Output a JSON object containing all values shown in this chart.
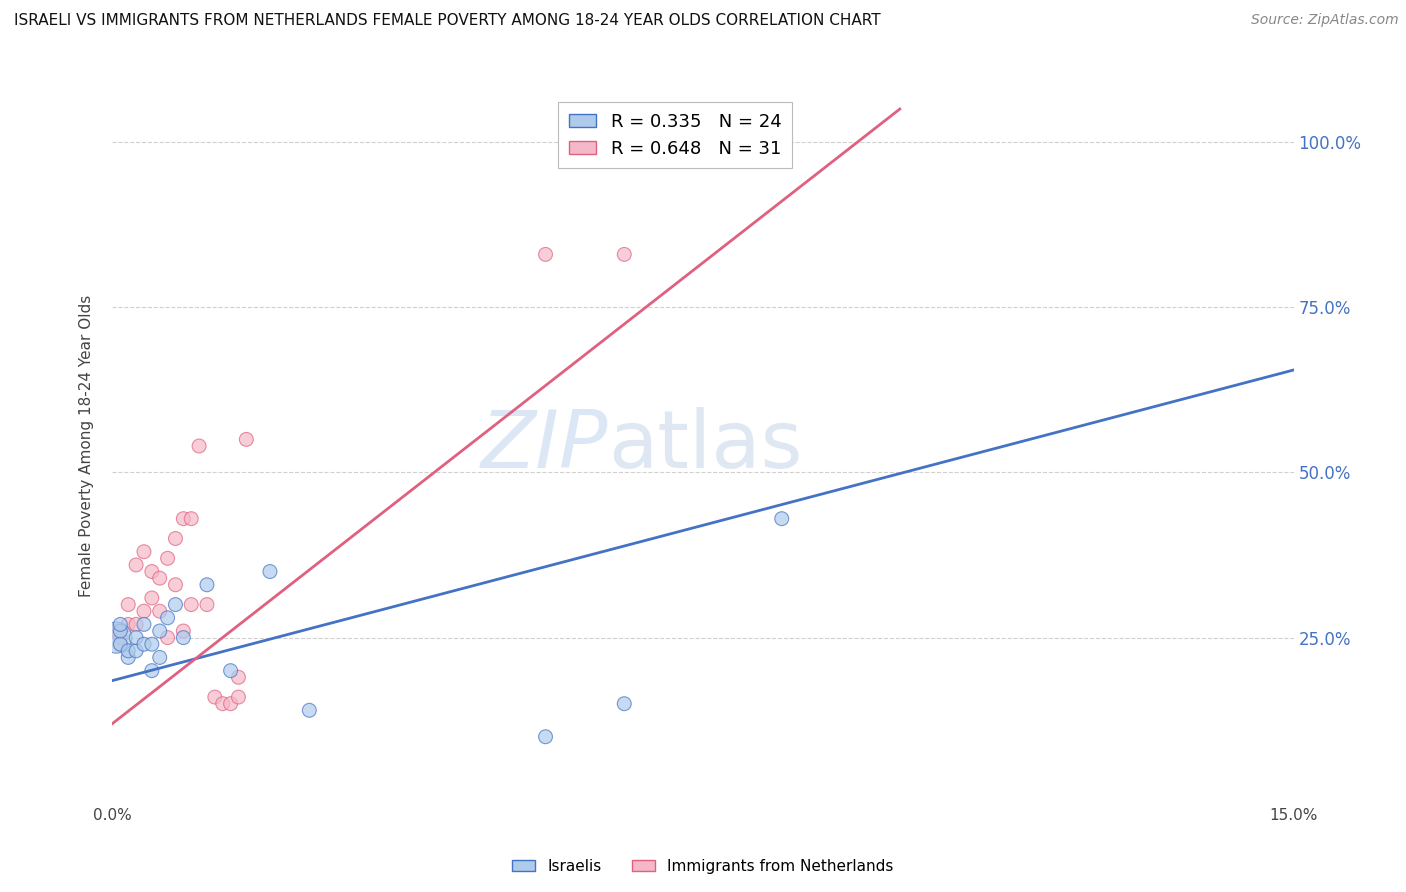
{
  "title": "ISRAELI VS IMMIGRANTS FROM NETHERLANDS FEMALE POVERTY AMONG 18-24 YEAR OLDS CORRELATION CHART",
  "source": "Source: ZipAtlas.com",
  "ylabel": "Female Poverty Among 18-24 Year Olds",
  "xlim": [
    0.0,
    0.15
  ],
  "ylim": [
    0.0,
    1.08
  ],
  "legend_israelis": "Israelis",
  "legend_netherlands": "Immigrants from Netherlands",
  "R_israelis": 0.335,
  "N_israelis": 24,
  "R_netherlands": 0.648,
  "N_netherlands": 31,
  "color_israelis": "#aecbec",
  "color_netherlands": "#f4b8c8",
  "color_line_israelis": "#4472c4",
  "color_line_netherlands": "#e06080",
  "watermark_zip": "ZIP",
  "watermark_atlas": "atlas",
  "israelis_x": [
    0.0005,
    0.001,
    0.001,
    0.001,
    0.002,
    0.002,
    0.003,
    0.003,
    0.004,
    0.004,
    0.005,
    0.005,
    0.006,
    0.006,
    0.007,
    0.008,
    0.009,
    0.012,
    0.015,
    0.02,
    0.025,
    0.055,
    0.065,
    0.085
  ],
  "israelis_y": [
    0.25,
    0.24,
    0.26,
    0.27,
    0.22,
    0.23,
    0.23,
    0.25,
    0.24,
    0.27,
    0.2,
    0.24,
    0.22,
    0.26,
    0.28,
    0.3,
    0.25,
    0.33,
    0.2,
    0.35,
    0.14,
    0.1,
    0.15,
    0.43
  ],
  "israelis_size": [
    500,
    100,
    100,
    100,
    100,
    100,
    100,
    100,
    100,
    100,
    100,
    100,
    100,
    100,
    100,
    100,
    100,
    100,
    100,
    100,
    100,
    100,
    100,
    100
  ],
  "netherlands_x": [
    0.0005,
    0.001,
    0.001,
    0.002,
    0.002,
    0.003,
    0.003,
    0.004,
    0.004,
    0.005,
    0.005,
    0.006,
    0.006,
    0.007,
    0.007,
    0.008,
    0.008,
    0.009,
    0.009,
    0.01,
    0.01,
    0.011,
    0.012,
    0.013,
    0.014,
    0.015,
    0.016,
    0.016,
    0.017,
    0.055,
    0.065
  ],
  "netherlands_y": [
    0.26,
    0.24,
    0.25,
    0.27,
    0.3,
    0.27,
    0.36,
    0.29,
    0.38,
    0.31,
    0.35,
    0.29,
    0.34,
    0.25,
    0.37,
    0.33,
    0.4,
    0.26,
    0.43,
    0.3,
    0.43,
    0.54,
    0.3,
    0.16,
    0.15,
    0.15,
    0.16,
    0.19,
    0.55,
    0.83,
    0.83
  ],
  "netherlands_size": [
    100,
    100,
    100,
    100,
    100,
    100,
    100,
    100,
    100,
    100,
    100,
    100,
    100,
    100,
    100,
    100,
    100,
    100,
    100,
    100,
    100,
    100,
    100,
    100,
    100,
    100,
    100,
    100,
    100,
    100,
    100
  ],
  "background_color": "#ffffff",
  "grid_color": "#d0d0d0",
  "isr_line_x0": 0.0,
  "isr_line_y0": 0.185,
  "isr_line_x1": 0.15,
  "isr_line_y1": 0.655,
  "net_line_x0": 0.0,
  "net_line_y0": 0.12,
  "net_line_x1": 0.1,
  "net_line_y1": 1.05
}
